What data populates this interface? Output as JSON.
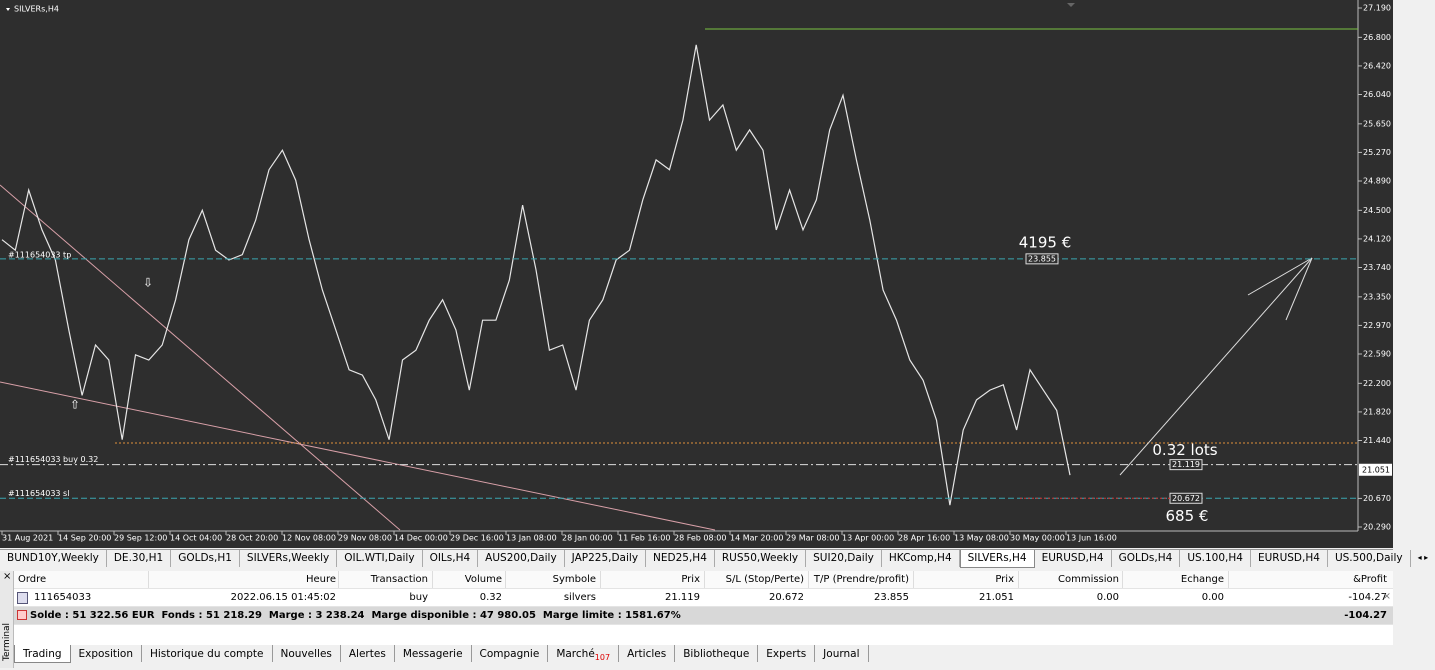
{
  "chart": {
    "type": "line",
    "symbol": "SILVERs,H4",
    "ylim": [
      20.29,
      27.19
    ],
    "yticks": [
      {
        "value": 27.19,
        "label": "27.190"
      },
      {
        "value": 26.8,
        "label": "26.800"
      },
      {
        "value": 26.42,
        "label": "26.420"
      },
      {
        "value": 26.04,
        "label": "26.040"
      },
      {
        "value": 25.65,
        "label": "25.650"
      },
      {
        "value": 25.27,
        "label": "25.270"
      },
      {
        "value": 24.89,
        "label": "24.890"
      },
      {
        "value": 24.5,
        "label": "24.500"
      },
      {
        "value": 24.12,
        "label": "24.120"
      },
      {
        "value": 23.74,
        "label": "23.740"
      },
      {
        "value": 23.35,
        "label": "23.350"
      },
      {
        "value": 22.97,
        "label": "22.970"
      },
      {
        "value": 22.59,
        "label": "22.590"
      },
      {
        "value": 22.2,
        "label": "22.200"
      },
      {
        "value": 21.82,
        "label": "21.820"
      },
      {
        "value": 21.44,
        "label": "21.440"
      },
      {
        "value": 20.67,
        "label": "20.670"
      },
      {
        "value": 20.29,
        "label": "20.290"
      }
    ],
    "categories": [
      "31 Aug 2021",
      "14 Sep 20:00",
      "29 Sep 12:00",
      "14 Oct 04:00",
      "28 Oct 20:00",
      "12 Nov 08:00",
      "29 Nov 08:00",
      "14 Dec 00:00",
      "29 Dec 16:00",
      "13 Jan 08:00",
      "28 Jan 00:00",
      "11 Feb 16:00",
      "28 Feb 08:00",
      "14 Mar 20:00",
      "29 Mar 08:00",
      "13 Apr 00:00",
      "28 Apr 16:00",
      "13 May 08:00",
      "30 May 00:00",
      "13 Jun 16:00"
    ],
    "color": "#e6e6e6",
    "values": [
      24.11,
      23.97,
      24.77,
      24.24,
      23.84,
      22.91,
      22.04,
      22.71,
      22.51,
      21.45,
      22.58,
      22.51,
      22.71,
      23.31,
      24.11,
      24.5,
      23.97,
      23.84,
      23.91,
      24.37,
      25.04,
      25.3,
      24.9,
      24.11,
      23.44,
      22.91,
      22.38,
      22.31,
      21.98,
      21.45,
      22.51,
      22.64,
      23.04,
      23.31,
      22.91,
      22.11,
      23.04,
      23.04,
      23.57,
      24.57,
      23.71,
      22.64,
      22.71,
      22.11,
      23.04,
      23.31,
      23.84,
      23.97,
      24.64,
      25.17,
      25.04,
      25.7,
      26.7,
      25.7,
      25.9,
      25.3,
      25.57,
      25.3,
      24.24,
      24.77,
      24.24,
      24.64,
      25.57,
      26.03,
      25.17,
      24.37,
      23.44,
      23.04,
      22.51,
      22.24,
      21.71,
      20.58,
      21.58,
      21.98,
      22.11,
      22.18,
      21.58,
      22.38,
      22.11,
      21.84,
      20.98
    ],
    "orders": {
      "tp": {
        "label": "#111654033 tp",
        "value": 23.855,
        "note": "4195 €"
      },
      "open": {
        "label": "#111654033 buy 0.32",
        "value": 21.119,
        "note": "0.32 lots"
      },
      "sl": {
        "label": "#111654033 sl",
        "value": 20.672,
        "note": "685 €"
      }
    },
    "bid": 21.051
  },
  "tabs": [
    "BUND10Y,Weekly",
    "DE.30,H1",
    "GOLDs,H1",
    "SILVERs,Weekly",
    "OIL.WTI,Daily",
    "OILs,H4",
    "AUS200,Daily",
    "JAP225,Daily",
    "NED25,H4",
    "RUS50,Weekly",
    "SUI20,Daily",
    "HKComp,H4",
    "SILVERs,H4",
    "EURUSD,H4",
    "GOLDs,H4",
    "US.100,H4",
    "EURUSD,H4",
    "US.500,Daily"
  ],
  "active_tab": 12,
  "table": {
    "headers": [
      "Ordre",
      "Heure",
      "Transaction",
      "Volume",
      "Symbole",
      "Prix",
      "S/L (Stop/Perte)",
      "T/P (Prendre/profit)",
      "Prix",
      "Commission",
      "Echange",
      "&Profit"
    ],
    "rows": [
      [
        "111654033",
        "2022.06.15 01:45:02",
        "buy",
        "0.32",
        "silvers",
        "21.119",
        "20.672",
        "23.855",
        "21.051",
        "0.00",
        "0.00",
        "-104.27"
      ]
    ],
    "summary": "Solde : 51 322.56 EUR  Fonds : 51 218.29  Marge : 3 238.24  Marge disponible : 47 980.05  Marge limite : 1581.67%",
    "summary_profit": "-104.27"
  },
  "terminal_label": "Terminal",
  "bottom_tabs": [
    "Trading",
    "Exposition",
    "Historique du compte",
    "Nouvelles",
    "Alertes",
    "Messagerie",
    "Compagnie",
    "Marché",
    "Articles",
    "Bibliotheque",
    "Experts",
    "Journal"
  ],
  "market_badge": "107"
}
